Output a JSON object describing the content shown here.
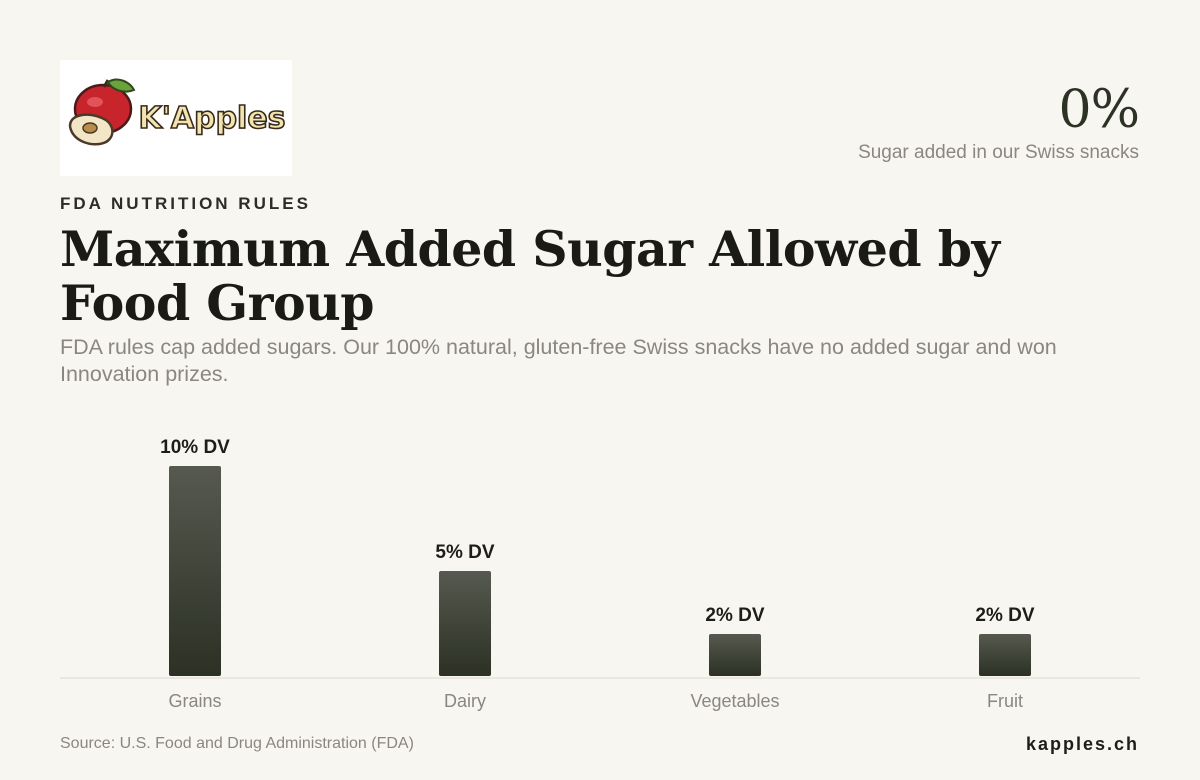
{
  "brand": {
    "logo_text": "K'Apples",
    "site": "kapples.ch"
  },
  "highlight": {
    "value": "0%",
    "label": "Sugar added in our Swiss snacks"
  },
  "eyebrow": "FDA NUTRITION RULES",
  "title": "Maximum Added Sugar Allowed by Food Group",
  "subtitle": "FDA rules cap added sugars. Our 100% natural, gluten-free Swiss snacks have no added sugar and won Innovation prizes.",
  "source": "Source: U.S. Food and Drug Administration (FDA)",
  "colors": {
    "background": "#f8f6f1",
    "bar_top": "#55594d",
    "bar_bottom": "#2c3324",
    "accent": "#2c3324"
  },
  "chart_data": {
    "type": "bar",
    "categories": [
      "Grains",
      "Dairy",
      "Vegetables",
      "Fruit"
    ],
    "values": [
      10,
      5,
      2,
      2
    ],
    "data_labels": [
      "10% DV",
      "5% DV",
      "2% DV",
      "2% DV"
    ],
    "ylim": [
      0,
      10
    ],
    "grid": false,
    "legend": "none"
  }
}
